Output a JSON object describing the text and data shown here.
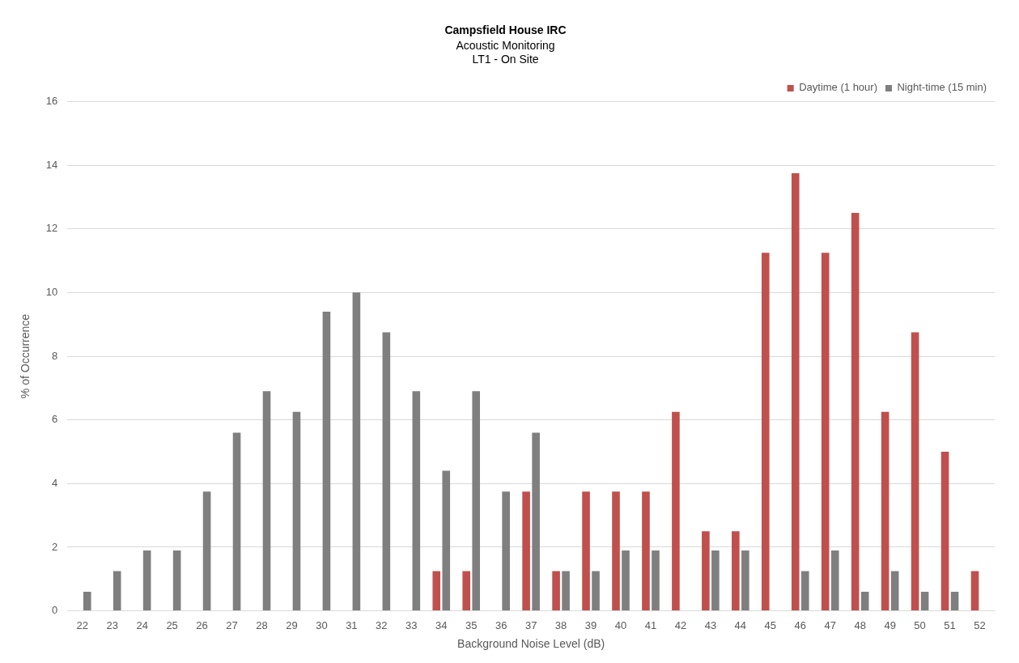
{
  "chart_data": {
    "type": "bar",
    "title": "Campsfield House IRC",
    "subtitle": "Acoustic Monitoring\nLT1 - On Site",
    "xlabel": "Background Noise Level (dB)",
    "ylabel": "% of Occurrence",
    "categories": [
      "22",
      "23",
      "24",
      "25",
      "26",
      "27",
      "28",
      "29",
      "30",
      "31",
      "32",
      "33",
      "34",
      "35",
      "36",
      "37",
      "38",
      "39",
      "40",
      "41",
      "42",
      "43",
      "44",
      "45",
      "46",
      "47",
      "48",
      "49",
      "50",
      "51",
      "52"
    ],
    "series": [
      {
        "name": "Daytime (1 hour)",
        "color": "#c0504d",
        "values": [
          0,
          0,
          0,
          0,
          0,
          0,
          0,
          0,
          0,
          0,
          0,
          0,
          1.25,
          1.25,
          0,
          3.75,
          1.25,
          3.75,
          3.75,
          3.75,
          6.25,
          2.5,
          2.5,
          11.25,
          13.75,
          11.25,
          12.5,
          6.25,
          8.75,
          5,
          1.25
        ]
      },
      {
        "name": "Night-time (15 min)",
        "color": "#7f7f7f",
        "values": [
          0.6,
          1.25,
          1.9,
          1.9,
          3.75,
          5.6,
          6.9,
          6.25,
          9.4,
          10,
          8.75,
          6.9,
          4.4,
          6.9,
          3.75,
          5.6,
          1.25,
          1.25,
          1.9,
          1.9,
          0,
          1.9,
          1.9,
          0,
          1.25,
          1.9,
          0.6,
          1.25,
          0.6,
          0.6,
          0
        ]
      }
    ],
    "ylim": [
      0,
      16
    ],
    "yticks": [
      0,
      2,
      4,
      6,
      8,
      10,
      12,
      14,
      16
    ],
    "grid": "y",
    "legend": "top right"
  }
}
